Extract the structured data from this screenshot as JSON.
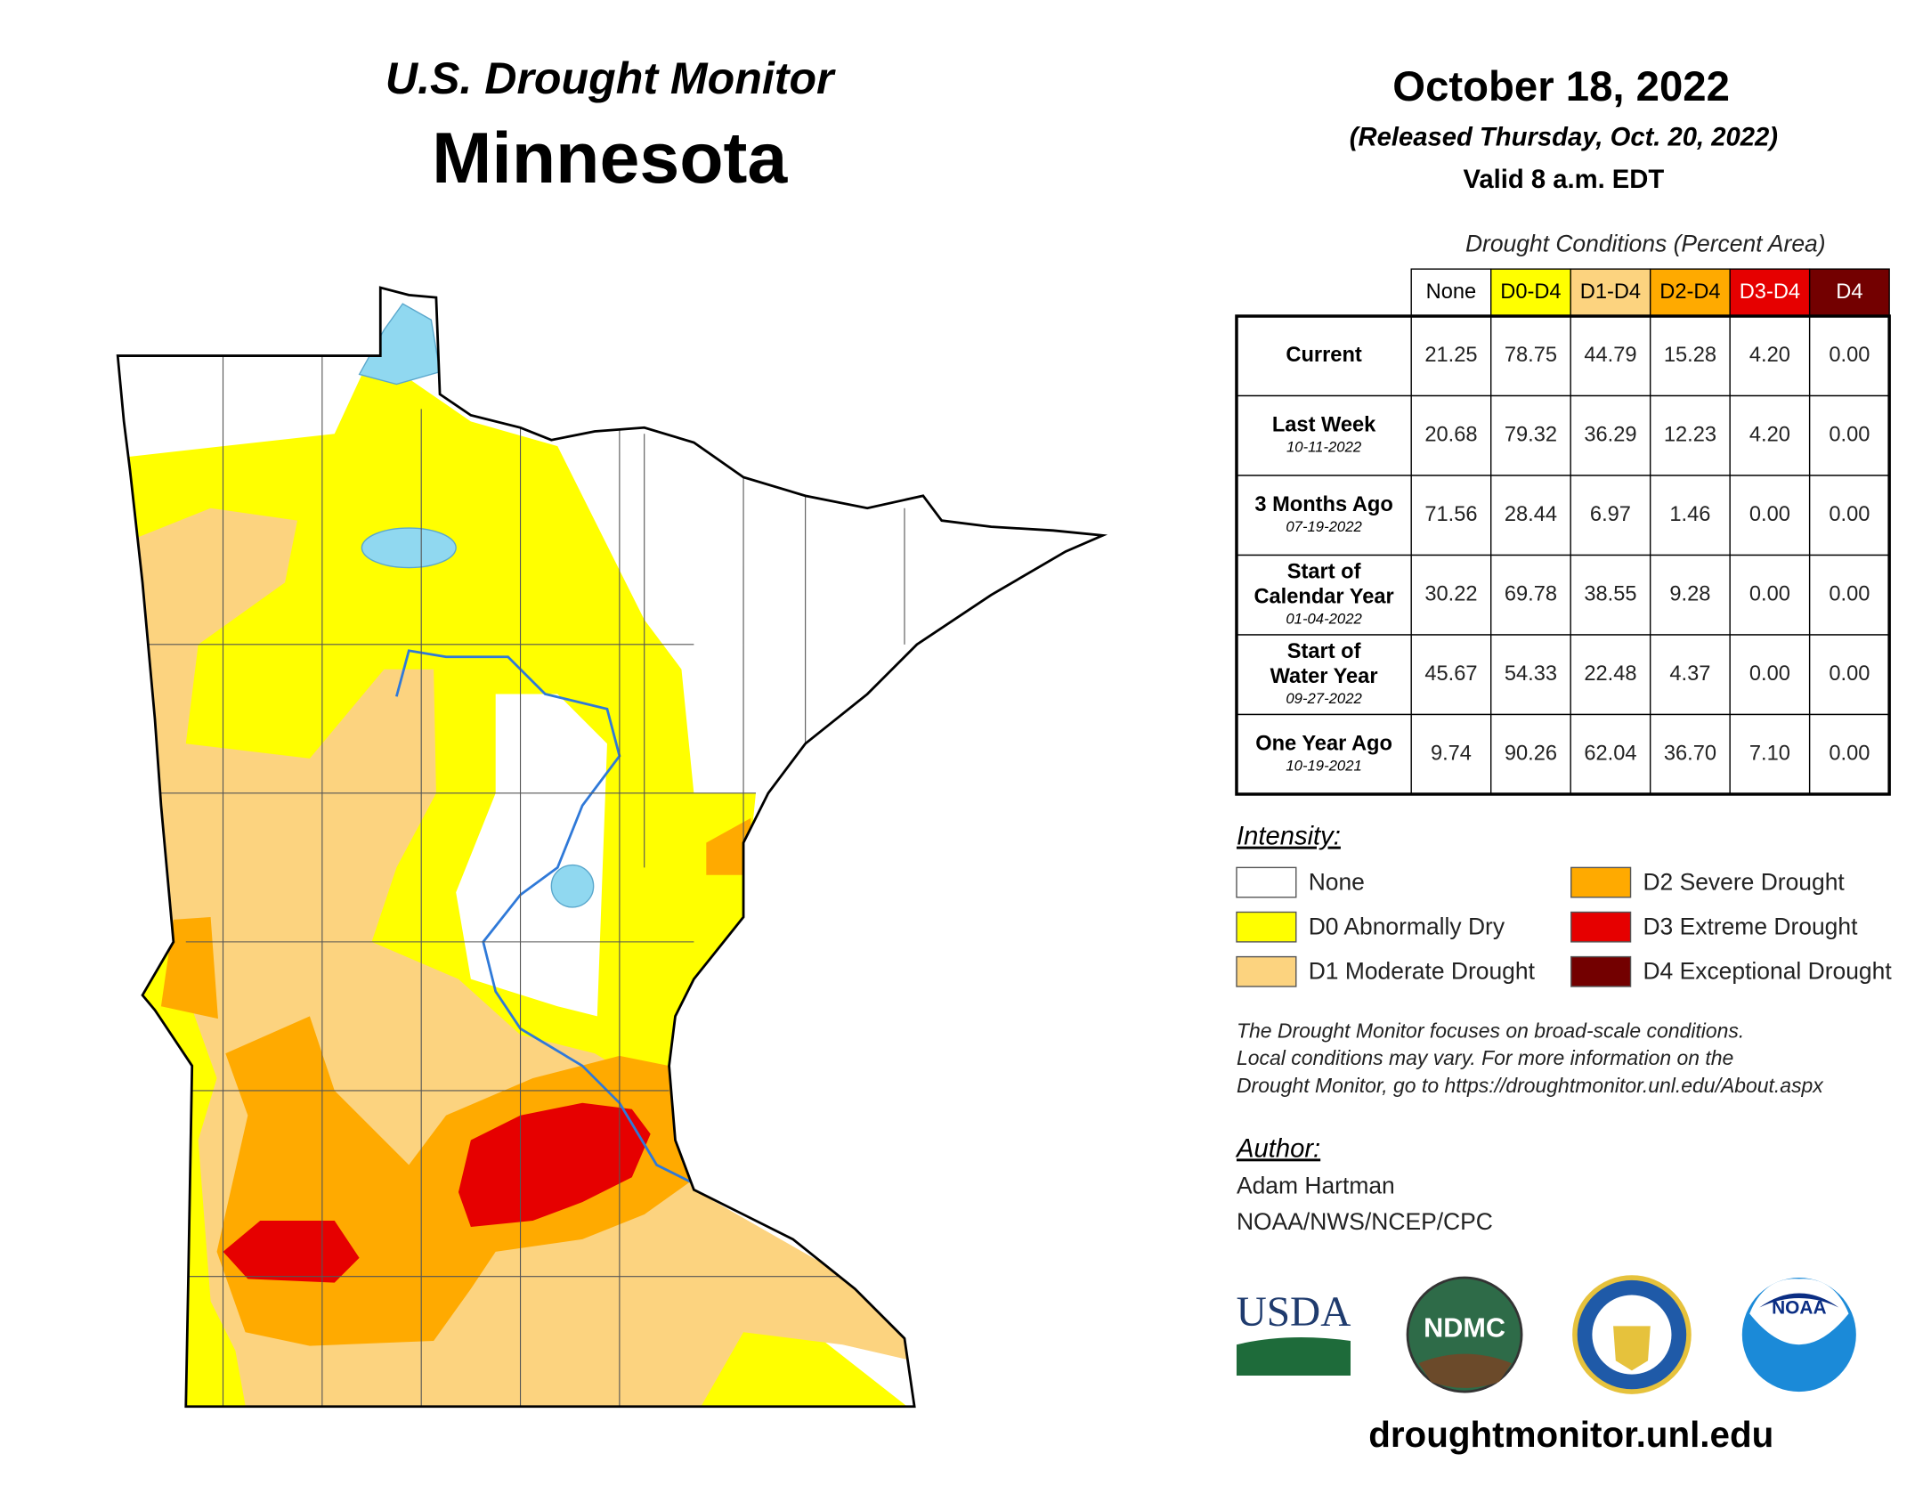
{
  "header": {
    "title": "U.S. Drought Monitor",
    "state": "Minnesota",
    "date": "October 18, 2022",
    "released": "(Released Thursday, Oct. 20, 2022)",
    "valid": "Valid 8 a.m. EDT"
  },
  "table": {
    "caption": "Drought Conditions (Percent Area)",
    "columns": [
      {
        "label": "None",
        "color": "#ffffff",
        "text_color": "#000000"
      },
      {
        "label": "D0-D4",
        "color": "#ffff00",
        "text_color": "#000000"
      },
      {
        "label": "D1-D4",
        "color": "#fcd37f",
        "text_color": "#000000"
      },
      {
        "label": "D2-D4",
        "color": "#ffaa00",
        "text_color": "#000000"
      },
      {
        "label": "D3-D4",
        "color": "#e60000",
        "text_color": "#ffffff"
      },
      {
        "label": "D4",
        "color": "#730000",
        "text_color": "#ffffff"
      }
    ],
    "rows": [
      {
        "label": [
          "Current"
        ],
        "values": [
          "21.25",
          "78.75",
          "44.79",
          "15.28",
          "4.20",
          "0.00"
        ]
      },
      {
        "label": [
          "Last Week"
        ],
        "date": "10-11-2022",
        "values": [
          "20.68",
          "79.32",
          "36.29",
          "12.23",
          "4.20",
          "0.00"
        ]
      },
      {
        "label": [
          "3 Months Ago"
        ],
        "date": "07-19-2022",
        "values": [
          "71.56",
          "28.44",
          "6.97",
          "1.46",
          "0.00",
          "0.00"
        ]
      },
      {
        "label": [
          "Start of",
          "Calendar Year"
        ],
        "date": "01-04-2022",
        "values": [
          "30.22",
          "69.78",
          "38.55",
          "9.28",
          "0.00",
          "0.00"
        ]
      },
      {
        "label": [
          "Start of",
          "Water Year"
        ],
        "date": "09-27-2022",
        "values": [
          "45.67",
          "54.33",
          "22.48",
          "4.37",
          "0.00",
          "0.00"
        ]
      },
      {
        "label": [
          "One Year Ago"
        ],
        "date": "10-19-2021",
        "values": [
          "9.74",
          "90.26",
          "62.04",
          "36.70",
          "7.10",
          "0.00"
        ]
      }
    ]
  },
  "legend": {
    "title": "Intensity:",
    "items": [
      {
        "label": "None",
        "color": "#ffffff"
      },
      {
        "label": "D0 Abnormally Dry",
        "color": "#ffff00"
      },
      {
        "label": "D1 Moderate Drought",
        "color": "#fcd37f"
      },
      {
        "label": "D2 Severe Drought",
        "color": "#ffaa00"
      },
      {
        "label": "D3 Extreme Drought",
        "color": "#e60000"
      },
      {
        "label": "D4 Exceptional Drought",
        "color": "#730000"
      }
    ]
  },
  "note": [
    "The Drought Monitor focuses on broad-scale conditions.",
    "Local conditions may vary. For more information on the",
    "Drought Monitor, go to https://droughtmonitor.unl.edu/About.aspx"
  ],
  "author": {
    "title": "Author:",
    "name": "Adam Hartman",
    "org": "NOAA/NWS/NCEP/CPC"
  },
  "logos": [
    "USDA",
    "NDMC",
    "NOAA"
  ],
  "footer": "droughtmonitor.unl.edu"
}
